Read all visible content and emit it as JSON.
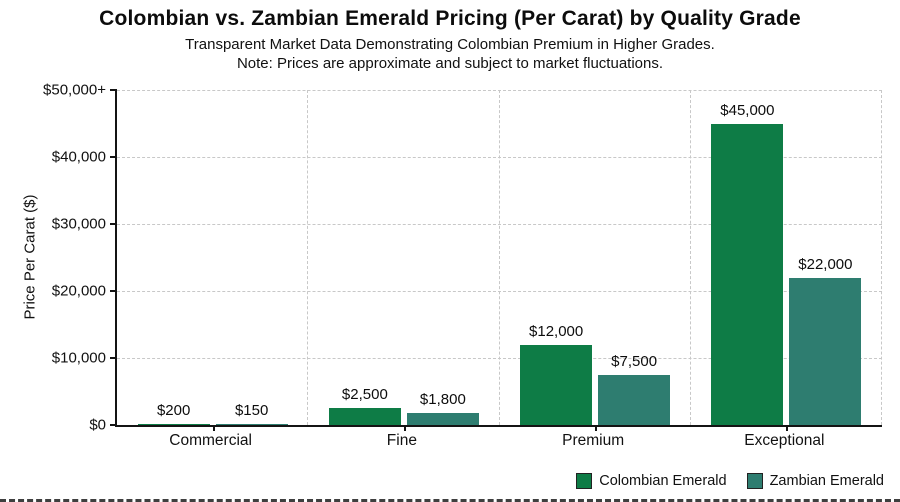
{
  "chart_data": {
    "type": "bar",
    "title": "Colombian vs. Zambian Emerald Pricing (Per Carat) by Quality Grade",
    "subtitle": "Transparent Market Data Demonstrating Colombian Premium in Higher Grades.",
    "note": "Note: Prices are approximate and subject to market fluctuations.",
    "ylabel": "Price Per Carat ($)",
    "categories": [
      "Commercial",
      "Fine",
      "Premium",
      "Exceptional"
    ],
    "series": [
      {
        "name": "Colombian Emerald",
        "color": "#0e7c46",
        "values": [
          200,
          2500,
          12000,
          45000
        ],
        "labels": [
          "$200",
          "$2,500",
          "$12,000",
          "$45,000"
        ]
      },
      {
        "name": "Zambian Emerald",
        "color": "#2e7d70",
        "values": [
          150,
          1800,
          7500,
          22000
        ],
        "labels": [
          "$150",
          "$1,800",
          "$7,500",
          "$22,000"
        ]
      }
    ],
    "yticks": [
      {
        "value": 0,
        "label": "$0"
      },
      {
        "value": 10000,
        "label": "$10,000"
      },
      {
        "value": 20000,
        "label": "$20,000"
      },
      {
        "value": 30000,
        "label": "$30,000"
      },
      {
        "value": 40000,
        "label": "$40,000"
      },
      {
        "value": 50000,
        "label": "$50,000+"
      }
    ],
    "ylim": [
      0,
      50000
    ],
    "grid": "dashed",
    "legend_position": "bottom-right",
    "background": "#ffffff"
  }
}
